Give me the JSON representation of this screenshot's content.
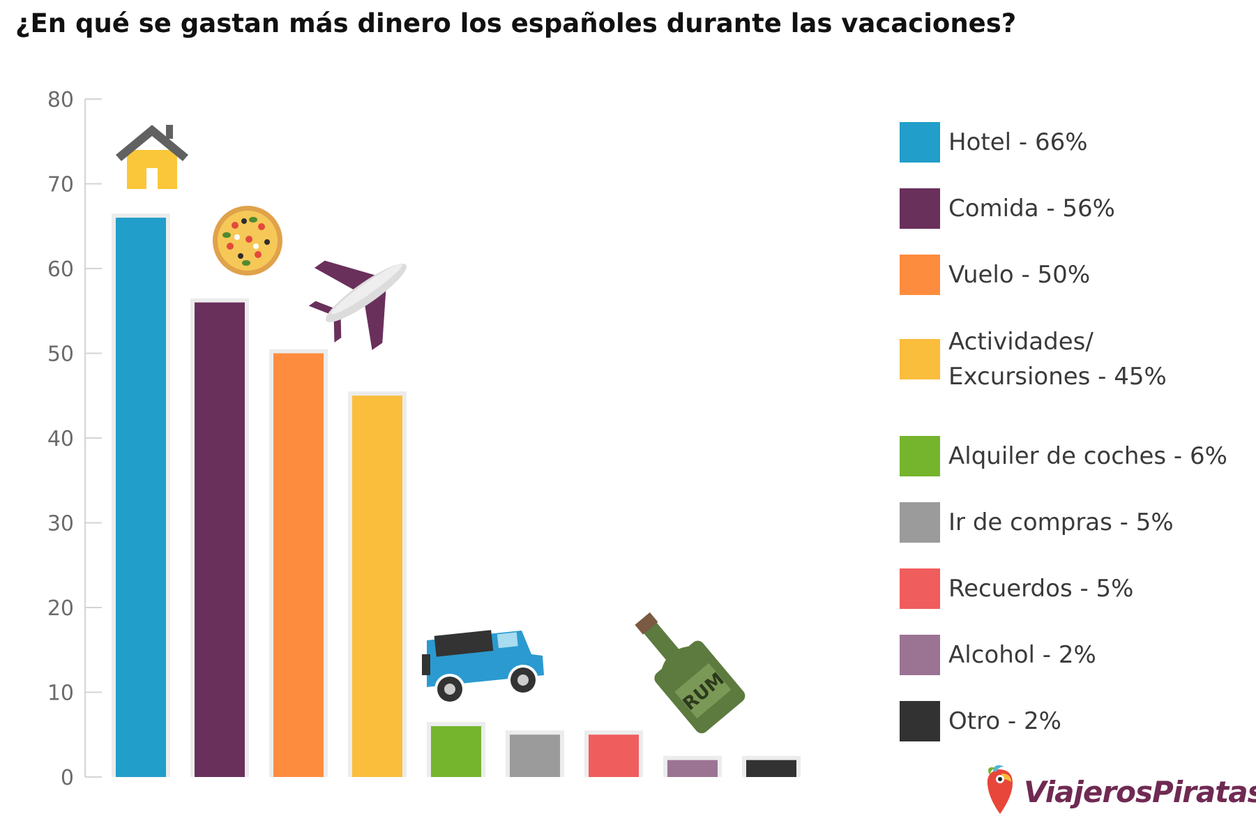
{
  "chart_data": {
    "type": "bar",
    "title": "¿En qué se gastan más dinero los españoles durante las vacaciones?",
    "ylim": [
      0,
      80
    ],
    "yticks": [
      0,
      10,
      20,
      30,
      40,
      50,
      60,
      70,
      80
    ],
    "categories": [
      "Hotel",
      "Comida",
      "Vuelo",
      "Actividades/ Excursiones",
      "Alquiler de coches",
      "Ir de compras",
      "Recuerdos",
      "Alcohol",
      "Otro"
    ],
    "values": [
      66,
      56,
      50,
      45,
      6,
      5,
      5,
      2,
      2
    ],
    "colors": [
      "#219ec9",
      "#6a305c",
      "#fe8c3f",
      "#fabd3c",
      "#74b52d",
      "#9b9b9b",
      "#f05d5d",
      "#9b7494",
      "#323232"
    ],
    "legend": {
      "placement": "right",
      "labels": [
        "Hotel - 66%",
        "Comida - 56%",
        "Vuelo - 50%",
        "Actividades/\nExcursiones - 45%",
        "Alquiler de coches - 6%",
        "Ir de compras - 5%",
        "Recuerdos - 5%",
        "Alcohol - 2%",
        "Otro - 2%"
      ]
    },
    "grid": false
  },
  "icons": [
    "house-icon",
    "pizza-icon",
    "airplane-icon",
    "jeep-icon",
    "rum-bottle-icon",
    "parrot-logo-icon"
  ],
  "sticker_texts": {
    "bottle_label": "RUM"
  },
  "brand": {
    "name": "ViajerosPiratas",
    "color": "#6f2a52"
  }
}
